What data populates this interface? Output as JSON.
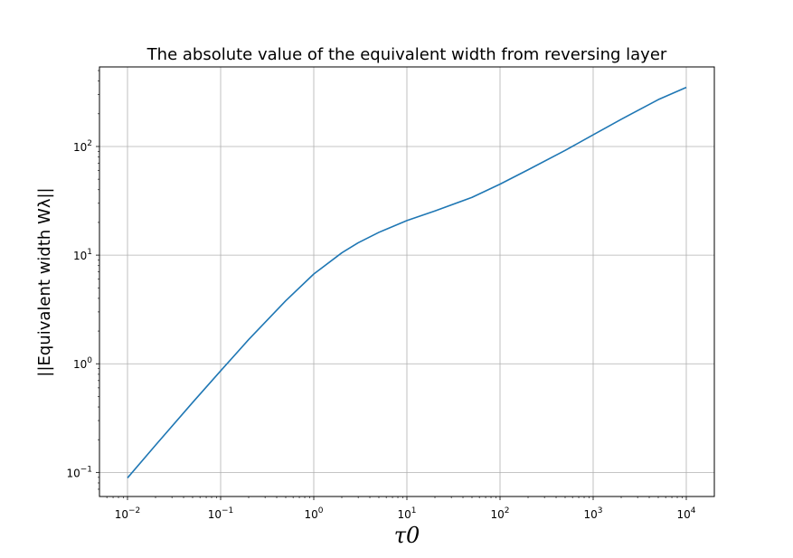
{
  "chart_data": {
    "type": "line",
    "title": "The absolute value of the equivalent width from reversing layer",
    "xlabel": "τ0",
    "ylabel": "||Equivalent width Wλ||",
    "xscale": "log",
    "yscale": "log",
    "xlim": [
      0.005,
      20000
    ],
    "ylim": [
      0.06,
      540
    ],
    "grid": true,
    "x_ticks": [
      {
        "value": 0.01,
        "base": "10",
        "exp": "−2"
      },
      {
        "value": 0.1,
        "base": "10",
        "exp": "−1"
      },
      {
        "value": 1,
        "base": "10",
        "exp": "0"
      },
      {
        "value": 10,
        "base": "10",
        "exp": "1"
      },
      {
        "value": 100,
        "base": "10",
        "exp": "2"
      },
      {
        "value": 1000,
        "base": "10",
        "exp": "3"
      },
      {
        "value": 10000,
        "base": "10",
        "exp": "4"
      }
    ],
    "y_ticks": [
      {
        "value": 0.1,
        "base": "10",
        "exp": "−1"
      },
      {
        "value": 1,
        "base": "10",
        "exp": "0"
      },
      {
        "value": 10,
        "base": "10",
        "exp": "1"
      },
      {
        "value": 100,
        "base": "10",
        "exp": "2"
      }
    ],
    "series": [
      {
        "color": "#1f77b4",
        "x": [
          0.01,
          0.02,
          0.05,
          0.1,
          0.2,
          0.5,
          1,
          2,
          3,
          5,
          10,
          20,
          50,
          100,
          200,
          500,
          1000,
          2000,
          5000,
          10000
        ],
        "y": [
          0.089,
          0.178,
          0.44,
          0.86,
          1.67,
          3.8,
          6.7,
          10.5,
          13.0,
          16.2,
          20.8,
          25.5,
          34.0,
          45.0,
          61.0,
          92.0,
          128.0,
          178.0,
          270.0,
          350.0
        ]
      }
    ]
  }
}
